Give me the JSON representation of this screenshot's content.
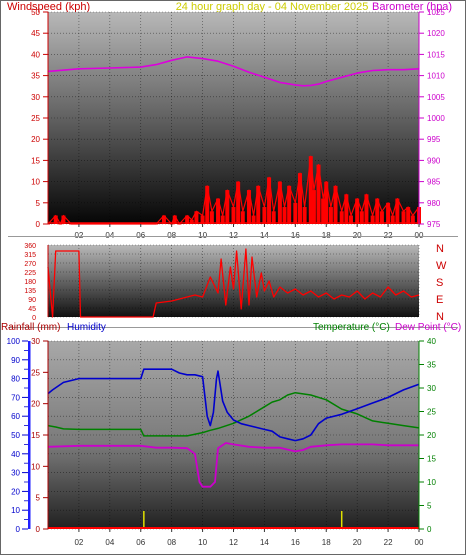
{
  "header": {
    "wind_label": "Windspeed (kph)",
    "title": "24 hour graph day - 04 November 2025",
    "baro_label": "Barometer (hpa)"
  },
  "colors": {
    "wind": "#ff0000",
    "barometer": "#dd00dd",
    "rain": "#aa0000",
    "humidity": "#0000cc",
    "temperature": "#008000",
    "dewpoint": "#cc00cc",
    "axis_left": "#cc0000",
    "axis_right": "#cc00cc",
    "title": "#cccc00"
  },
  "time_labels": [
    "02",
    "04",
    "06",
    "08",
    "10",
    "12",
    "14",
    "16",
    "18",
    "20",
    "22",
    "00"
  ],
  "chart_data": [
    {
      "type": "line",
      "name": "wind_barometer",
      "x_unit": "hour",
      "xlim": [
        0,
        24
      ],
      "left_axis": {
        "label": "Windspeed (kph)",
        "ticks": [
          0,
          5,
          10,
          15,
          20,
          25,
          30,
          35,
          40,
          45,
          50
        ],
        "lim": [
          0,
          50
        ]
      },
      "right_axis": {
        "label": "Barometer (hpa)",
        "ticks": [
          975,
          980,
          985,
          990,
          995,
          1000,
          1005,
          1010,
          1015,
          1020,
          1025
        ],
        "lim": [
          975,
          1025
        ]
      },
      "series": [
        {
          "name": "Barometer",
          "axis": "right",
          "x": [
            0,
            2,
            4,
            6,
            7,
            8,
            9,
            10,
            11,
            12,
            13,
            14,
            15,
            16,
            16.5,
            17,
            17.5,
            18,
            19,
            20,
            21,
            22,
            23,
            24
          ],
          "y": [
            1011.0,
            1011.6,
            1011.8,
            1012.0,
            1012.6,
            1013.6,
            1014.4,
            1014.0,
            1013.4,
            1012.2,
            1010.8,
            1009.6,
            1008.4,
            1007.8,
            1007.6,
            1007.7,
            1008.0,
            1008.6,
            1009.6,
            1010.6,
            1011.2,
            1011.4,
            1011.4,
            1011.6
          ]
        },
        {
          "name": "Windspeed",
          "axis": "left",
          "x": [
            0,
            0.5,
            0.8,
            1.0,
            1.5,
            2,
            4,
            5,
            6,
            7,
            7.5,
            8,
            8.2,
            8.5,
            9,
            9.3,
            9.6,
            10,
            10.3,
            10.6,
            11,
            11.3,
            11.6,
            12,
            12.3,
            12.6,
            13,
            13.3,
            13.6,
            14,
            14.3,
            14.6,
            15,
            15.3,
            15.6,
            16,
            16.3,
            16.6,
            17,
            17.2,
            17.5,
            17.8,
            18,
            18.3,
            18.6,
            19,
            19.3,
            19.6,
            20,
            20.3,
            20.6,
            21,
            21.3,
            21.6,
            22,
            22.3,
            22.6,
            23,
            23.3,
            23.6,
            24
          ],
          "y": [
            0,
            2,
            0,
            2,
            0,
            0,
            0,
            0,
            0,
            0,
            2,
            0,
            2,
            0,
            2,
            1,
            3,
            2,
            9,
            3,
            6,
            2,
            8,
            4,
            10,
            3,
            8,
            2,
            9,
            4,
            11,
            3,
            10,
            4,
            9,
            5,
            12,
            4,
            16,
            8,
            14,
            6,
            10,
            4,
            9,
            3,
            7,
            2,
            6,
            3,
            7,
            2,
            6,
            3,
            5,
            2,
            6,
            3,
            4,
            2,
            4
          ]
        }
      ]
    },
    {
      "type": "line",
      "name": "wind_direction",
      "x_unit": "hour",
      "xlim": [
        0,
        24
      ],
      "left_axis": {
        "ticks": [
          0,
          45,
          90,
          135,
          180,
          225,
          270,
          315,
          360
        ],
        "lim": [
          0,
          360
        ]
      },
      "right_axis": {
        "ticks": [
          "N",
          "W",
          "S",
          "E",
          "N"
        ]
      },
      "series": [
        {
          "name": "Wind direction",
          "x": [
            0,
            0.3,
            0.5,
            1.0,
            1.5,
            2,
            2.1,
            2.5,
            4,
            5,
            6,
            6.8,
            7,
            8,
            9,
            9.5,
            10,
            10.5,
            11,
            11.2,
            11.5,
            11.8,
            12,
            12.2,
            12.5,
            12.8,
            13,
            13.2,
            13.5,
            13.8,
            14,
            14.3,
            14.6,
            15,
            15.5,
            16,
            16.5,
            17,
            17.5,
            18,
            18.5,
            19,
            19.5,
            20,
            20.5,
            21,
            21.5,
            22,
            22.5,
            23,
            23.5,
            24
          ],
          "y": [
            250,
            0,
            330,
            330,
            330,
            330,
            0,
            0,
            0,
            0,
            0,
            0,
            70,
            80,
            100,
            110,
            100,
            200,
            120,
            290,
            60,
            250,
            140,
            330,
            40,
            340,
            60,
            300,
            100,
            220,
            130,
            180,
            100,
            150,
            120,
            140,
            110,
            130,
            100,
            120,
            90,
            110,
            100,
            130,
            90,
            120,
            100,
            150,
            110,
            130,
            100,
            110
          ]
        }
      ]
    },
    {
      "type": "line",
      "name": "rain_humidity_temperature",
      "x_unit": "hour",
      "xlim": [
        0,
        24
      ],
      "left_axes": [
        {
          "label": "Rainfall (mm)",
          "ticks": [
            0,
            5,
            10,
            15,
            20,
            25,
            30
          ],
          "lim": [
            0,
            30
          ]
        },
        {
          "label": "Humidity",
          "ticks": [
            0,
            10,
            20,
            30,
            40,
            50,
            60,
            70,
            80,
            90,
            100
          ],
          "lim": [
            0,
            100
          ]
        }
      ],
      "right_axis": {
        "label": "Temperature (°C)",
        "ticks": [
          0,
          5,
          10,
          15,
          20,
          25,
          30,
          35,
          40
        ],
        "lim": [
          0,
          40
        ]
      },
      "right_axis_label_2": "Dew Point (°C)",
      "series": [
        {
          "name": "Humidity",
          "axis": "humidity",
          "x": [
            0,
            0.3,
            1,
            2,
            3,
            4,
            5,
            6,
            6.2,
            7,
            8,
            8.5,
            9,
            9.5,
            10,
            10.3,
            10.5,
            10.7,
            10.9,
            11,
            11.3,
            11.6,
            12,
            12.5,
            13,
            13.5,
            14,
            14.5,
            15,
            15.5,
            16,
            16.5,
            17,
            17.5,
            18,
            19,
            20,
            21,
            22,
            23,
            24
          ],
          "y": [
            72,
            74,
            78,
            80,
            80,
            80,
            80,
            80,
            85,
            85,
            85,
            83,
            82,
            82,
            81,
            60,
            55,
            62,
            80,
            84,
            68,
            62,
            58,
            56,
            55,
            54,
            53,
            52,
            49,
            48,
            47,
            48,
            50,
            56,
            59,
            61,
            64,
            67,
            70,
            74,
            77
          ]
        },
        {
          "name": "Temperature",
          "axis": "right",
          "x": [
            0,
            0.5,
            1,
            2,
            3,
            4,
            5,
            6,
            6.2,
            7,
            8,
            9,
            10,
            10.5,
            11,
            12,
            13,
            14,
            14.5,
            15,
            15.5,
            16,
            17,
            18,
            19,
            20,
            21,
            22,
            23,
            24
          ],
          "y": [
            22.0,
            21.7,
            21.3,
            21.2,
            21.2,
            21.2,
            21.2,
            21.2,
            19.8,
            19.8,
            19.8,
            19.8,
            20.5,
            21.0,
            21.4,
            22.5,
            24.0,
            26.0,
            27.0,
            27.5,
            28.5,
            29.0,
            28.5,
            27.5,
            25.5,
            24.5,
            23.0,
            22.5,
            22.0,
            21.5
          ]
        },
        {
          "name": "Dew Point",
          "axis": "right",
          "x": [
            0,
            2,
            4,
            6,
            7,
            8,
            9,
            9.5,
            9.8,
            10,
            10.5,
            10.8,
            11,
            11.5,
            12,
            13,
            14,
            15,
            16,
            16.5,
            17,
            18,
            19,
            20,
            21,
            22,
            23,
            24
          ],
          "y": [
            17.5,
            17.7,
            17.7,
            17.7,
            17.3,
            17.3,
            17.2,
            16.0,
            10.0,
            9.0,
            9.0,
            10.0,
            17.2,
            18.3,
            18.0,
            17.5,
            17.3,
            17.3,
            16.5,
            16.8,
            17.5,
            17.8,
            18.0,
            18.0,
            18.0,
            17.8,
            17.8,
            17.8
          ]
        },
        {
          "name": "Rainfall",
          "axis": "rainfall",
          "x": [
            0,
            24
          ],
          "y": [
            0,
            0
          ]
        }
      ]
    }
  ],
  "footer": {
    "rain_label": "Rainfall (mm)",
    "hum_label": "Humidity",
    "temp_label": "Temperature (°C)",
    "dew_label": "Dew Point (°C)"
  }
}
